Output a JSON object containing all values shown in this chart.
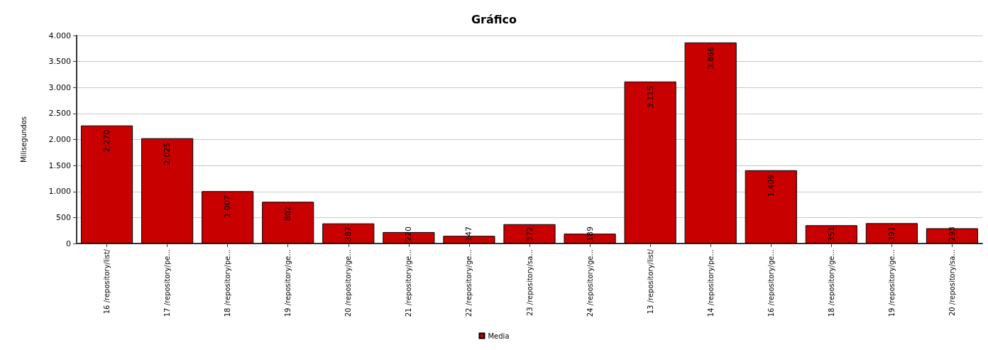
{
  "chart_data": {
    "type": "bar",
    "title": "Gráfico",
    "ylabel": "Milisegundos",
    "categories": [
      "16 /repository/list/",
      "17 /repository/pe...",
      "18 /repository/pe...",
      "19 /repository/ge...",
      "20 /repository/ge...",
      "21 /repository/ge...",
      "22 /repository/ge...",
      "23 /repository/sa...",
      "24 /repository/ge...",
      "13 /repository/list/",
      "14 /repository/pe...",
      "16 /repository/ge...",
      "18 /repository/ge...",
      "19 /repository/ge...",
      "20 /repository/sa..."
    ],
    "series": [
      {
        "name": "Media",
        "color": "#c80000",
        "values": [
          2270,
          2025,
          1007,
          802,
          387,
          220,
          147,
          372,
          189,
          3115,
          3866,
          1409,
          351,
          391,
          293
        ],
        "value_labels": [
          "2.270",
          "2.025",
          "1.007",
          "802",
          "387",
          "220",
          "147",
          "372",
          "189",
          "3.115",
          "3.866",
          "1.409",
          "351",
          "391",
          "293"
        ]
      }
    ],
    "ylim": [
      0,
      4000
    ],
    "yticks": [
      0,
      {
        "value": 500,
        "label": "500"
      },
      {
        "value": 1000,
        "label": "1.000"
      },
      {
        "value": 1500,
        "label": "1.500"
      },
      {
        "value": 2000,
        "label": "2.000"
      },
      {
        "value": 2500,
        "label": "2.500"
      },
      {
        "value": 3000,
        "label": "3.000"
      },
      {
        "value": 3500,
        "label": "3.500"
      },
      {
        "value": 4000,
        "label": "4.000"
      }
    ],
    "grid": "y",
    "legend": "bottom"
  }
}
